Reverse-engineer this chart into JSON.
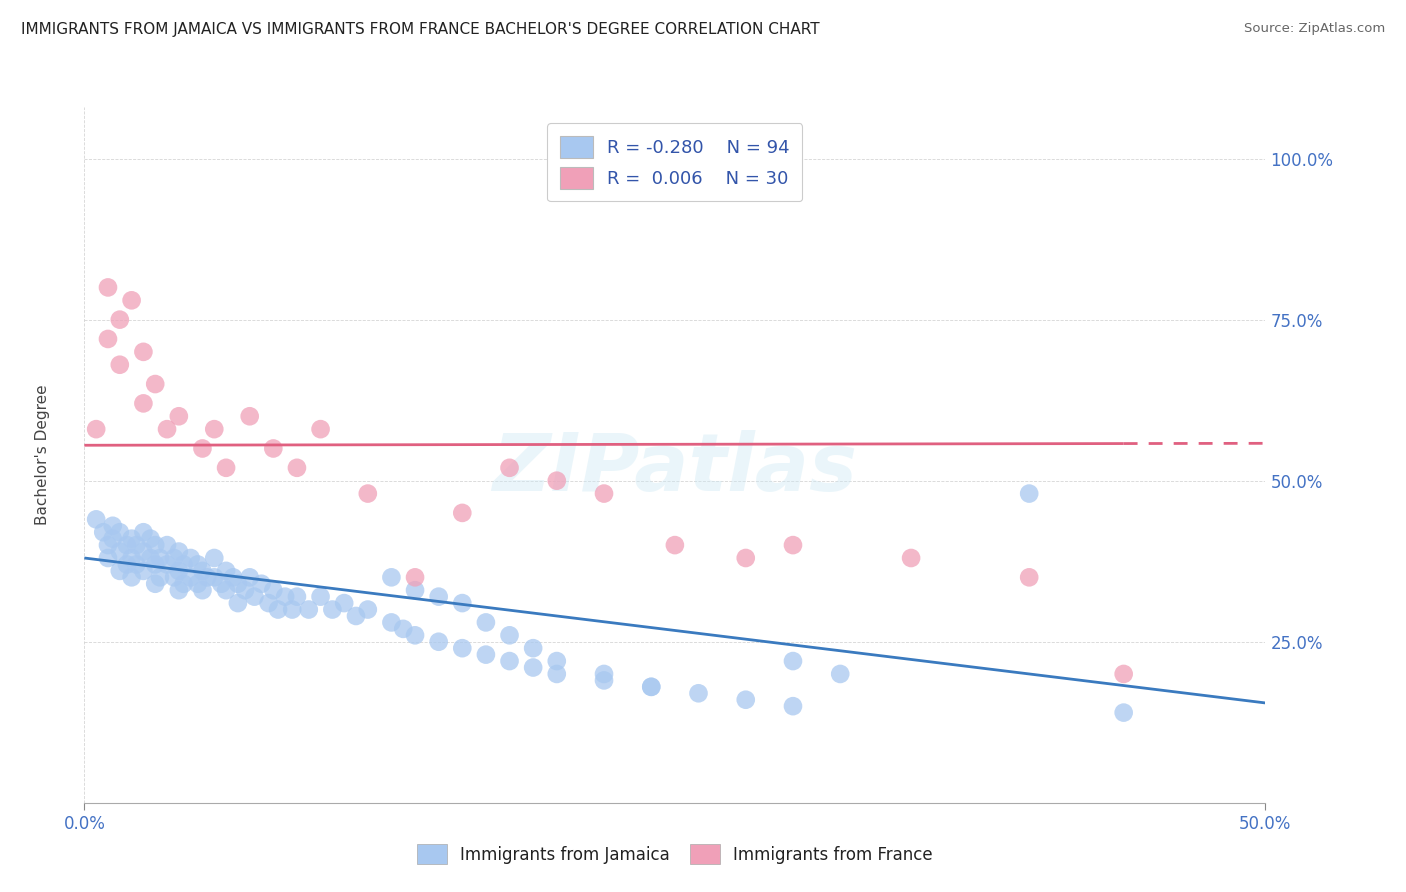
{
  "title": "IMMIGRANTS FROM JAMAICA VS IMMIGRANTS FROM FRANCE BACHELOR'S DEGREE CORRELATION CHART",
  "source": "Source: ZipAtlas.com",
  "ylabel": "Bachelor's Degree",
  "ytick_labels": [
    "25.0%",
    "50.0%",
    "75.0%",
    "100.0%"
  ],
  "ytick_values": [
    0.25,
    0.5,
    0.75,
    1.0
  ],
  "xlim": [
    0.0,
    0.5
  ],
  "ylim": [
    0.0,
    1.08
  ],
  "color_jamaica": "#a8c8f0",
  "color_france": "#f0a0b8",
  "color_line_jamaica": "#3a7abf",
  "color_line_france": "#e06080",
  "watermark": "ZIPatlas",
  "jamaica_scatter_x": [
    0.005,
    0.008,
    0.01,
    0.01,
    0.012,
    0.012,
    0.015,
    0.015,
    0.015,
    0.018,
    0.018,
    0.02,
    0.02,
    0.02,
    0.022,
    0.022,
    0.025,
    0.025,
    0.025,
    0.028,
    0.028,
    0.03,
    0.03,
    0.03,
    0.032,
    0.032,
    0.035,
    0.035,
    0.038,
    0.038,
    0.04,
    0.04,
    0.04,
    0.042,
    0.042,
    0.045,
    0.045,
    0.048,
    0.048,
    0.05,
    0.05,
    0.052,
    0.055,
    0.055,
    0.058,
    0.06,
    0.06,
    0.063,
    0.065,
    0.065,
    0.068,
    0.07,
    0.072,
    0.075,
    0.078,
    0.08,
    0.082,
    0.085,
    0.088,
    0.09,
    0.095,
    0.1,
    0.105,
    0.11,
    0.115,
    0.12,
    0.13,
    0.135,
    0.14,
    0.15,
    0.16,
    0.17,
    0.18,
    0.19,
    0.2,
    0.22,
    0.24,
    0.26,
    0.28,
    0.3,
    0.13,
    0.14,
    0.15,
    0.16,
    0.17,
    0.18,
    0.19,
    0.2,
    0.22,
    0.24,
    0.3,
    0.32,
    0.4,
    0.44
  ],
  "jamaica_scatter_y": [
    0.44,
    0.42,
    0.4,
    0.38,
    0.43,
    0.41,
    0.42,
    0.39,
    0.36,
    0.4,
    0.37,
    0.41,
    0.38,
    0.35,
    0.4,
    0.37,
    0.42,
    0.39,
    0.36,
    0.41,
    0.38,
    0.4,
    0.37,
    0.34,
    0.38,
    0.35,
    0.4,
    0.37,
    0.38,
    0.35,
    0.39,
    0.36,
    0.33,
    0.37,
    0.34,
    0.38,
    0.35,
    0.37,
    0.34,
    0.36,
    0.33,
    0.35,
    0.38,
    0.35,
    0.34,
    0.36,
    0.33,
    0.35,
    0.34,
    0.31,
    0.33,
    0.35,
    0.32,
    0.34,
    0.31,
    0.33,
    0.3,
    0.32,
    0.3,
    0.32,
    0.3,
    0.32,
    0.3,
    0.31,
    0.29,
    0.3,
    0.28,
    0.27,
    0.26,
    0.25,
    0.24,
    0.23,
    0.22,
    0.21,
    0.2,
    0.19,
    0.18,
    0.17,
    0.16,
    0.15,
    0.35,
    0.33,
    0.32,
    0.31,
    0.28,
    0.26,
    0.24,
    0.22,
    0.2,
    0.18,
    0.22,
    0.2,
    0.48,
    0.14
  ],
  "france_scatter_x": [
    0.005,
    0.01,
    0.01,
    0.015,
    0.015,
    0.02,
    0.025,
    0.025,
    0.03,
    0.035,
    0.04,
    0.05,
    0.055,
    0.06,
    0.07,
    0.08,
    0.09,
    0.1,
    0.12,
    0.14,
    0.16,
    0.18,
    0.2,
    0.22,
    0.25,
    0.28,
    0.3,
    0.35,
    0.4,
    0.44
  ],
  "france_scatter_y": [
    0.58,
    0.72,
    0.8,
    0.75,
    0.68,
    0.78,
    0.7,
    0.62,
    0.65,
    0.58,
    0.6,
    0.55,
    0.58,
    0.52,
    0.6,
    0.55,
    0.52,
    0.58,
    0.48,
    0.35,
    0.45,
    0.52,
    0.5,
    0.48,
    0.4,
    0.38,
    0.4,
    0.38,
    0.35,
    0.2
  ],
  "jamaica_line_x": [
    0.0,
    0.5
  ],
  "jamaica_line_y": [
    0.38,
    0.155
  ],
  "france_line_x": [
    0.0,
    0.5
  ],
  "france_line_y": [
    0.555,
    0.558
  ]
}
